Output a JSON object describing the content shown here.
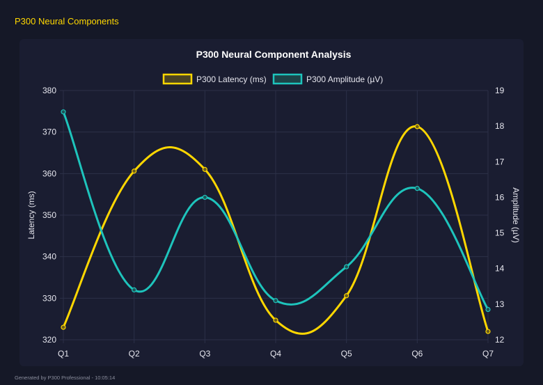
{
  "header": {
    "title": "P300 Neural Components"
  },
  "footer": {
    "text": "Generated by P300 Professional - 10:05:14"
  },
  "colors": {
    "latency": "#ffd700",
    "amplitude": "#1ec4bc",
    "grid": "#2c3048",
    "text": "#e6e6ee"
  },
  "chart_data": {
    "type": "line",
    "title": "P300 Neural Component Analysis",
    "categories": [
      "Q1",
      "Q2",
      "Q3",
      "Q4",
      "Q5",
      "Q6",
      "Q7"
    ],
    "y_left": {
      "label": "Latency (ms)",
      "range": [
        320,
        380
      ],
      "ticks": [
        "320",
        "330",
        "340",
        "350",
        "360",
        "370",
        "380"
      ]
    },
    "y_right": {
      "label": "Amplitude (µV)",
      "range": [
        12,
        19
      ],
      "ticks": [
        "12",
        "13",
        "14",
        "15",
        "16",
        "17",
        "18",
        "19"
      ]
    },
    "grid": true,
    "legend_position": "top",
    "series": [
      {
        "name": "P300 Latency (ms)",
        "axis": "left",
        "values": [
          323,
          360.6,
          361,
          324.7,
          330.6,
          371.3,
          322
        ]
      },
      {
        "name": "P300 Amplitude (µV)",
        "axis": "right",
        "values": [
          18.4,
          13.4,
          16.0,
          13.1,
          14.05,
          16.25,
          12.85
        ]
      }
    ]
  }
}
